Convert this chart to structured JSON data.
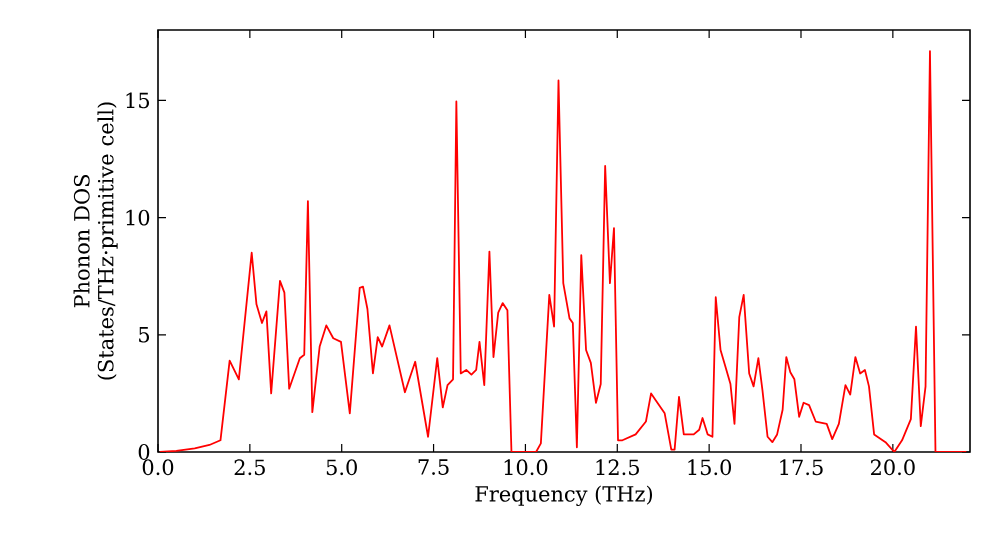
{
  "chart_data": {
    "type": "line",
    "xlabel": "Frequency (THz)",
    "ylabel": "Phonon DOS (States/THz·primitive cell)",
    "xlim": [
      0,
      22.1
    ],
    "ylim": [
      0,
      18
    ],
    "xticks": [
      {
        "value": 0,
        "label": "0.0"
      },
      2.5,
      {
        "value": 5,
        "label": "5.0"
      },
      7.5,
      {
        "value": 10,
        "label": "10.0"
      },
      12.5,
      {
        "value": 15,
        "label": "15.0"
      },
      17.5,
      {
        "value": 20,
        "label": "20.0"
      }
    ],
    "yticks": [
      0,
      5,
      10,
      15
    ],
    "marker": "none",
    "line_style": "solid",
    "series": [
      {
        "color": "#ff0000",
        "x": [
          0.05,
          0.5,
          1.0,
          1.4,
          1.7,
          1.95,
          2.2,
          2.55,
          2.68,
          2.83,
          2.95,
          3.08,
          3.32,
          3.44,
          3.57,
          3.86,
          3.98,
          4.08,
          4.2,
          4.4,
          4.58,
          4.77,
          4.98,
          5.22,
          5.49,
          5.58,
          5.7,
          5.85,
          5.98,
          6.1,
          6.3,
          6.72,
          7.0,
          7.35,
          7.6,
          7.75,
          7.88,
          8.03,
          8.12,
          8.24,
          8.39,
          8.53,
          8.66,
          8.75,
          8.88,
          9.02,
          9.13,
          9.26,
          9.38,
          9.51,
          9.62,
          10.29,
          10.42,
          10.65,
          10.78,
          10.9,
          11.03,
          11.2,
          11.29,
          11.4,
          11.52,
          11.65,
          11.78,
          11.92,
          12.05,
          12.17,
          12.3,
          12.41,
          12.52,
          12.64,
          13.0,
          13.28,
          13.42,
          13.55,
          13.79,
          13.97,
          14.06,
          14.18,
          14.31,
          14.58,
          14.73,
          14.82,
          14.96,
          15.09,
          15.18,
          15.31,
          15.45,
          15.58,
          15.69,
          15.82,
          15.94,
          16.09,
          16.21,
          16.34,
          16.45,
          16.59,
          16.72,
          16.85,
          17.0,
          17.1,
          17.21,
          17.32,
          17.45,
          17.57,
          17.72,
          17.9,
          18.2,
          18.35,
          18.53,
          18.71,
          18.84,
          18.98,
          19.11,
          19.24,
          19.35,
          19.49,
          19.8,
          20.04,
          20.25,
          20.49,
          20.63,
          20.76,
          20.89,
          21.01,
          21.16,
          22.0
        ],
        "values": [
          0,
          0.05,
          0.15,
          0.3,
          0.5,
          3.9,
          3.1,
          8.5,
          6.3,
          5.5,
          6.0,
          2.5,
          7.3,
          6.8,
          2.7,
          4.0,
          4.15,
          10.7,
          1.7,
          4.5,
          5.4,
          4.85,
          4.7,
          1.65,
          7.0,
          7.05,
          6.1,
          3.35,
          4.9,
          4.5,
          5.4,
          2.55,
          3.85,
          0.65,
          4.0,
          1.9,
          2.85,
          3.1,
          14.95,
          3.35,
          3.5,
          3.3,
          3.5,
          4.7,
          2.85,
          8.55,
          4.05,
          5.95,
          6.35,
          6.05,
          0,
          0,
          0.37,
          6.7,
          5.35,
          15.85,
          7.2,
          5.7,
          5.5,
          0.2,
          8.4,
          4.35,
          3.8,
          2.1,
          2.9,
          12.2,
          7.2,
          9.55,
          0.5,
          0.5,
          0.75,
          1.3,
          2.5,
          2.2,
          1.65,
          0.1,
          0.1,
          2.35,
          0.75,
          0.75,
          0.95,
          1.45,
          0.75,
          0.65,
          6.6,
          4.35,
          3.6,
          2.9,
          1.2,
          5.75,
          6.7,
          3.35,
          2.8,
          4.0,
          2.65,
          0.65,
          0.42,
          0.75,
          1.8,
          4.05,
          3.4,
          3.1,
          1.5,
          2.1,
          2.0,
          1.3,
          1.2,
          0.55,
          1.2,
          2.85,
          2.45,
          4.05,
          3.35,
          3.5,
          2.8,
          0.75,
          0.42,
          0,
          0.5,
          1.4,
          5.35,
          1.1,
          2.8,
          17.1,
          0,
          0
        ]
      }
    ]
  }
}
